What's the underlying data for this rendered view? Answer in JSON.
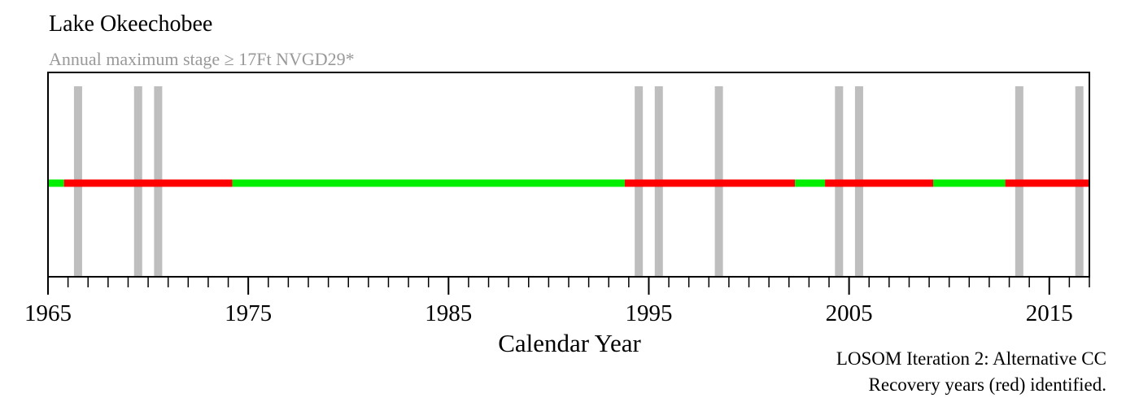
{
  "title": "Lake Okeechobee",
  "subtitle": "Annual maximum stage ≥ 17Ft NVGD29*",
  "note_line1": "LOSOM Iteration 2: Alternative CC",
  "note_line2": "Recovery years (red) identified.",
  "chart_data": {
    "type": "timeline",
    "xlabel": "Calendar Year",
    "xlim": [
      1965,
      2017
    ],
    "major_ticks": [
      1965,
      1975,
      1985,
      1995,
      2005,
      2015
    ],
    "tick_labels": [
      "1965",
      "1975",
      "1985",
      "1995",
      "2005",
      "2015"
    ],
    "minor_tick_step": 1,
    "exceedance_years": [
      1966,
      1969,
      1970,
      1994,
      1995,
      1998,
      2004,
      2005,
      2013,
      2016
    ],
    "segments": [
      {
        "start": 1965.0,
        "end": 1965.8,
        "status": "normal"
      },
      {
        "start": 1965.8,
        "end": 1974.2,
        "status": "recovery"
      },
      {
        "start": 1974.2,
        "end": 1993.8,
        "status": "normal"
      },
      {
        "start": 1993.8,
        "end": 2002.3,
        "status": "recovery"
      },
      {
        "start": 2002.3,
        "end": 2003.8,
        "status": "normal"
      },
      {
        "start": 2003.8,
        "end": 2009.2,
        "status": "recovery"
      },
      {
        "start": 2009.2,
        "end": 2012.8,
        "status": "normal"
      },
      {
        "start": 2012.8,
        "end": 2017.0,
        "status": "recovery"
      }
    ],
    "colors": {
      "recovery": "#ff0000",
      "normal": "#00ee00",
      "exceedance": "#bebebe"
    }
  }
}
